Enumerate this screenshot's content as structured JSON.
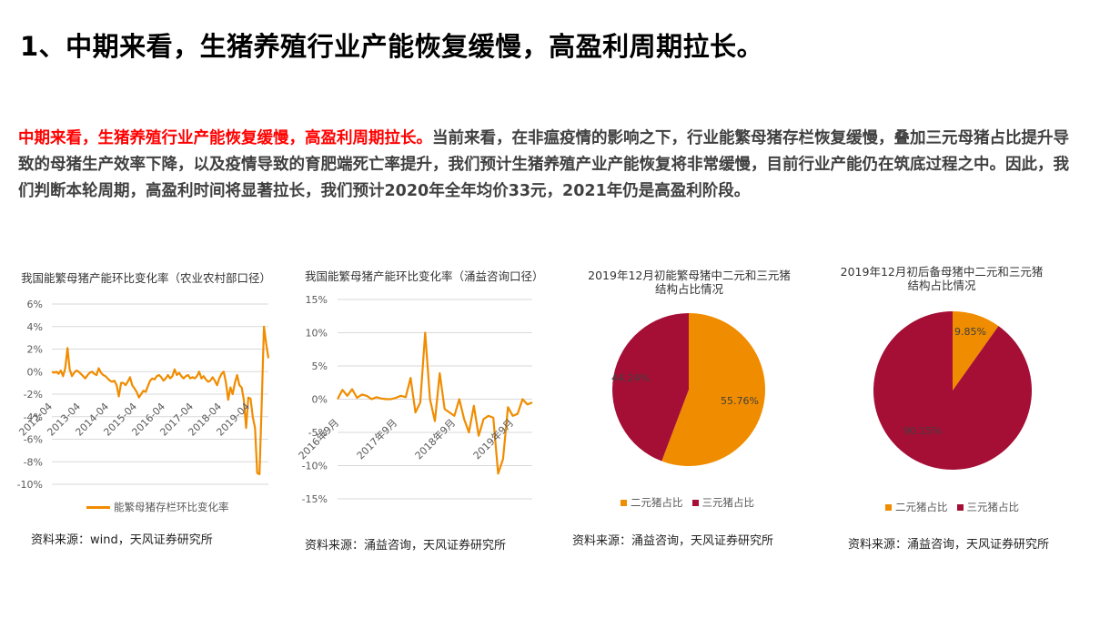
{
  "heading": "1、中期来看，生猪养殖行业产能恢复缓慢，高盈利周期拉长。",
  "paragraph": {
    "highlight": "中期来看，生猪养殖行业产能恢复缓慢，高盈利周期拉长。",
    "body": "当前来看，在非瘟疫情的影响之下，行业能繁母猪存栏恢复缓慢，叠加三元母猪占比提升导致的母猪生产效率下降，以及疫情导致的育肥端死亡率提升，我们预计生猪养殖产业产能恢复将非常缓慢，目前行业产能仍在筑底过程之中。因此，我们判断本轮周期，高盈利时间将显著拉长，我们预计2020年全年均价33元，2021年仍是高盈利阶段。"
  },
  "colors": {
    "orange": "#f08c00",
    "crimson": "#a50e35",
    "grid": "#d9d9d9",
    "accent_red": "#ff0000"
  },
  "charts": [
    {
      "title": "我国能繁母猪产能环比变化率（农业农村部口径）",
      "legend": "能繁母猪存栏环比变化率",
      "source": "资料来源：wind，天风证券研究所"
    },
    {
      "title": "我国能繁母猪产能环比变化率（涌益咨询口径）",
      "source": "资料来源：涌益咨询，天风证券研究所"
    },
    {
      "title_line1": "2019年12月初能繁母猪中二元和三元猪",
      "title_line2": "结构占比情况",
      "legend": [
        "二元猪占比",
        "三元猪占比"
      ],
      "labels": [
        "55.76%",
        "44.24%"
      ],
      "source": "资料来源：涌益咨询，天风证券研究所"
    },
    {
      "title_line1": "2019年12月初后备母猪中二元和三元猪",
      "title_line2": "结构占比情况",
      "legend": [
        "二元猪占比",
        "三元猪占比"
      ],
      "labels": [
        "9.85%",
        "90.15%"
      ],
      "source": "资料来源：涌益咨询，天风证券研究所"
    }
  ],
  "chart_data": [
    {
      "type": "line",
      "title": "我国能繁母猪产能环比变化率（农业农村部口径）",
      "xlabel": "",
      "ylabel": "",
      "ylim": [
        -10,
        6
      ],
      "yticks": [
        "6%",
        "4%",
        "2%",
        "0%",
        "-2%",
        "-4%",
        "-6%",
        "-8%",
        "-10%"
      ],
      "xticks": [
        "2012-04",
        "2013-04",
        "2014-04",
        "2015-04",
        "2016-04",
        "2017-04",
        "2018-04",
        "2019-04"
      ],
      "legend": [
        "能繁母猪存栏环比变化率"
      ],
      "grid": true,
      "series": [
        {
          "name": "能繁母猪存栏环比变化率",
          "values": [
            0.0,
            -0.1,
            0.0,
            -0.2,
            0.1,
            -0.4,
            0.3,
            2.1,
            0.2,
            -0.4,
            -0.1,
            0.1,
            0.0,
            -0.2,
            -0.4,
            -0.6,
            -0.3,
            -0.1,
            0.0,
            -0.2,
            -0.3,
            0.3,
            -0.1,
            -0.3,
            -0.4,
            -0.6,
            -0.8,
            -0.9,
            -0.8,
            -1.2,
            -2.2,
            -1.0,
            -1.0,
            -1.2,
            -0.9,
            -0.5,
            -1.2,
            -1.5,
            -1.8,
            -2.3,
            -2.0,
            -1.7,
            -1.8,
            -1.3,
            -0.8,
            -0.6,
            -0.7,
            -0.4,
            -0.3,
            -0.5,
            -0.8,
            -0.6,
            -0.3,
            -0.6,
            -0.4,
            0.2,
            -0.3,
            -0.1,
            -0.4,
            -0.6,
            -0.4,
            -0.3,
            -0.6,
            -0.5,
            -0.6,
            -0.4,
            0.0,
            -0.6,
            -0.4,
            -0.7,
            -0.9,
            -0.8,
            -0.5,
            -0.8,
            -1.2,
            -0.6,
            -0.2,
            0.0,
            -1.0,
            -2.5,
            -1.4,
            -2.0,
            -1.0,
            -0.3,
            -1.2,
            -1.4,
            -2.5,
            -5.0,
            -2.3,
            -2.4,
            -4.0,
            -5.0,
            -9.0,
            -9.1,
            -3.0,
            4.0,
            2.5,
            1.2
          ]
        }
      ]
    },
    {
      "type": "line",
      "title": "我国能繁母猪产能环比变化率（涌益咨询口径）",
      "xlabel": "",
      "ylabel": "",
      "ylim": [
        -15,
        15
      ],
      "yticks": [
        "15%",
        "10%",
        "5%",
        "0%",
        "-5%",
        "-10%",
        "-15%"
      ],
      "xticks": [
        "2016年9月",
        "2017年9月",
        "2018年9月",
        "2019年9月"
      ],
      "grid": true,
      "series": [
        {
          "name": "能繁母猪产能环比变化率",
          "values": [
            0.0,
            1.4,
            0.5,
            1.5,
            0.2,
            0.7,
            0.5,
            0.0,
            0.3,
            0.1,
            0.0,
            0.0,
            0.2,
            0.5,
            0.3,
            3.2,
            -2.0,
            -0.5,
            10.0,
            0.0,
            -3.3,
            3.9,
            -1.5,
            -2.0,
            -2.5,
            0.0,
            -3.0,
            -5.0,
            -1.0,
            -5.5,
            -3.0,
            -2.5,
            -2.8,
            -11.2,
            -9.0,
            -1.2,
            -2.5,
            -2.2,
            0.0,
            -0.8,
            -0.5
          ]
        }
      ]
    },
    {
      "type": "pie",
      "title": "2019年12月初能繁母猪中二元和三元猪结构占比情况",
      "categories": [
        "二元猪占比",
        "三元猪占比"
      ],
      "values": [
        55.76,
        44.24
      ],
      "legend_position": "bottom"
    },
    {
      "type": "pie",
      "title": "2019年12月初后备母猪中二元和三元猪结构占比情况",
      "categories": [
        "二元猪占比",
        "三元猪占比"
      ],
      "values": [
        9.85,
        90.15
      ],
      "legend_position": "bottom"
    }
  ]
}
